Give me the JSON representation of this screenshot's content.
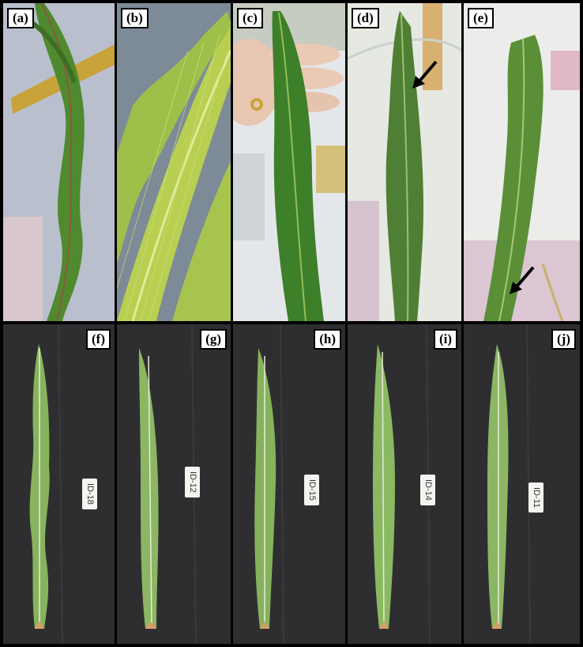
{
  "panels_top": [
    {
      "label": "(a)"
    },
    {
      "label": "(b)"
    },
    {
      "label": "(c)"
    },
    {
      "label": "(d)"
    },
    {
      "label": "(e)"
    }
  ],
  "panels_bottom": [
    {
      "label": "(f)",
      "id_tag": "ID-18"
    },
    {
      "label": "(g)",
      "id_tag": "ID-12"
    },
    {
      "label": "(h)",
      "id_tag": "ID-15"
    },
    {
      "label": "(i)",
      "id_tag": "ID-14"
    },
    {
      "label": "(j)",
      "id_tag": "ID-11"
    }
  ],
  "colors": {
    "leaf_green": "#4f8a2e",
    "pale_green": "#9ec04a",
    "background_cloth": "#2d2d2f",
    "arrow": "#000000"
  }
}
